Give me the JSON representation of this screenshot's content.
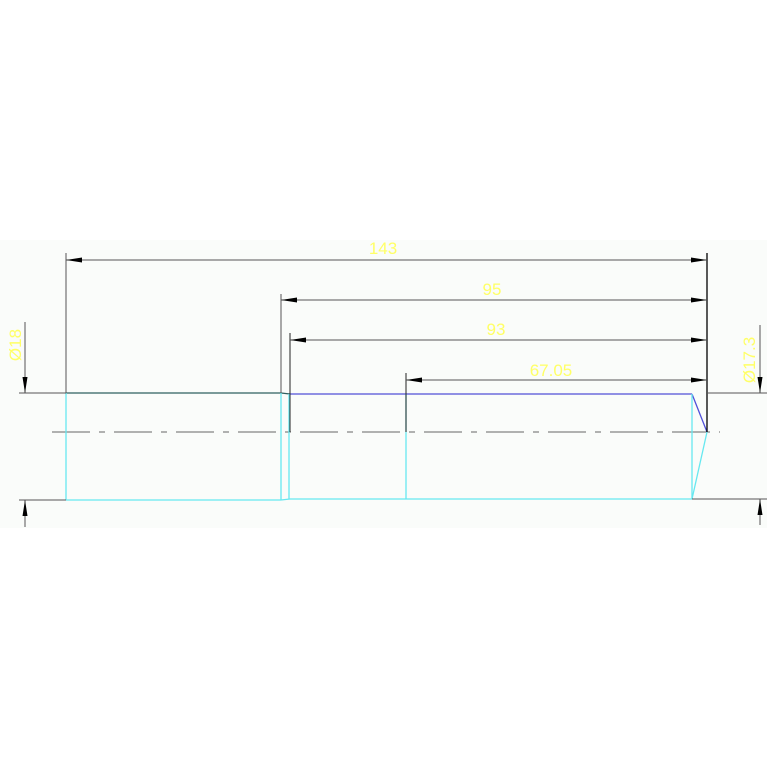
{
  "drawing": {
    "dimensions": {
      "overall_length": "143",
      "length_95": "95",
      "length_93": "93",
      "length_67": "67.05",
      "diameter_left": "Ø18",
      "diameter_right": "Ø17.3"
    },
    "colors": {
      "background": "#fafcfa",
      "dimension_text": "#ffff66",
      "outline_cyan": "#66e8f0",
      "outline_blue": "#5050d8",
      "outline_teal": "#2f5f5f",
      "dimension_line": "#555555"
    }
  }
}
